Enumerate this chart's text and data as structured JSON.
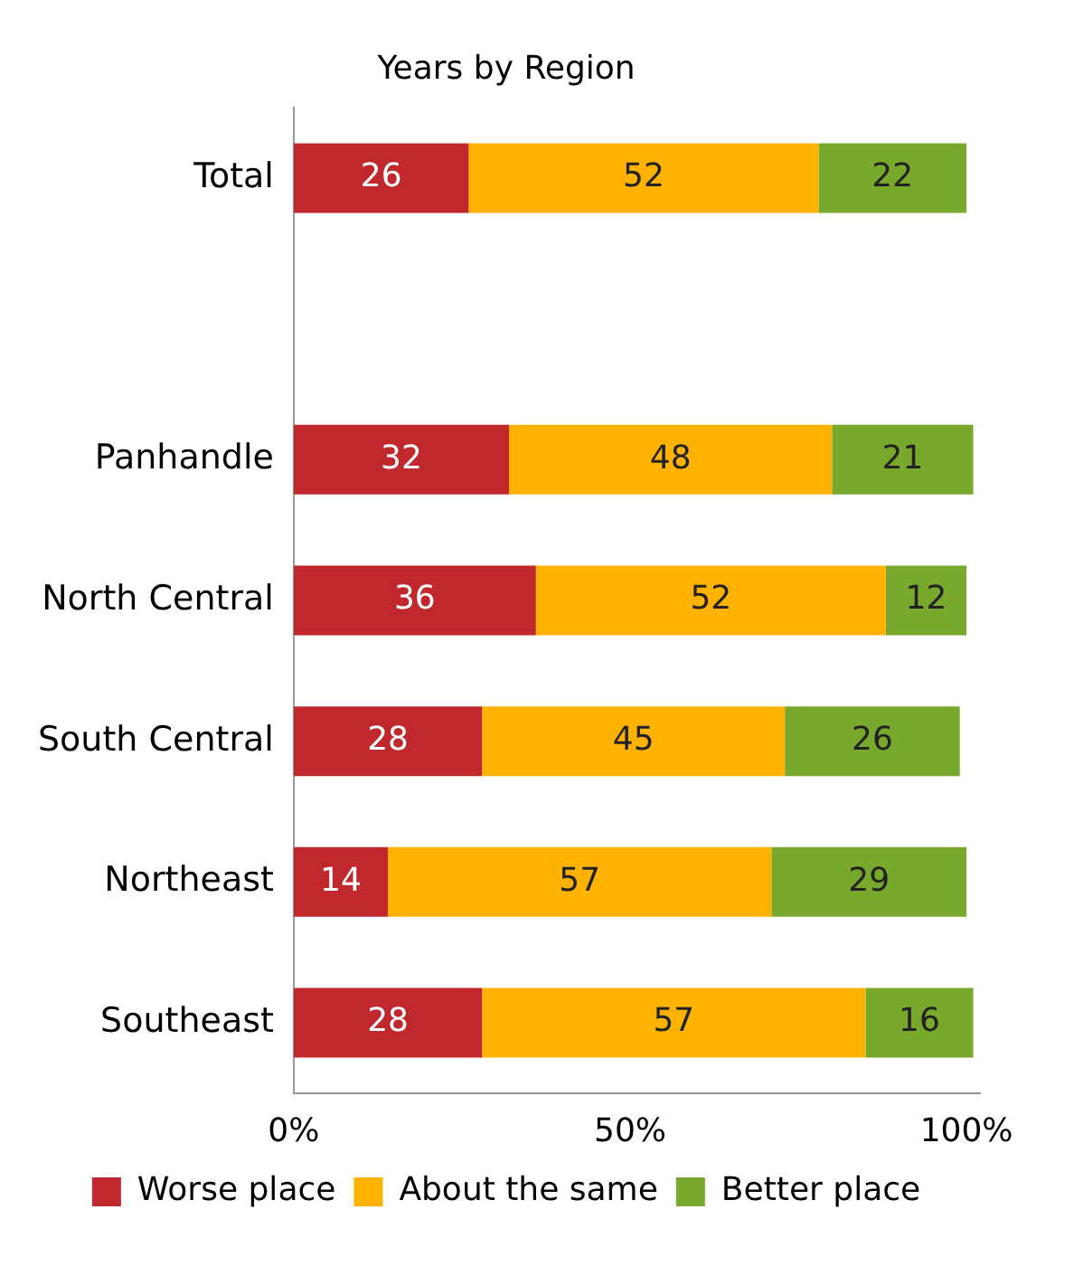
{
  "chart_data": {
    "type": "bar",
    "orientation": "horizontal",
    "stacked": true,
    "title": "Years by Region",
    "categories": [
      "Total",
      null,
      "Panhandle",
      "North Central",
      "South Central",
      "Northeast",
      "Southeast"
    ],
    "series": [
      {
        "name": "Worse place",
        "color": "#c0282e",
        "values": [
          26,
          null,
          32,
          36,
          28,
          14,
          28
        ]
      },
      {
        "name": "About the same",
        "color": "#ffb300",
        "values": [
          52,
          null,
          48,
          52,
          45,
          57,
          57
        ]
      },
      {
        "name": "Better place",
        "color": "#78a82c",
        "values": [
          22,
          null,
          21,
          12,
          26,
          29,
          16
        ]
      }
    ],
    "xlim": [
      0,
      102
    ],
    "xticks": [
      {
        "value": 0,
        "label": "0%"
      },
      {
        "value": 50,
        "label": "50%"
      },
      {
        "value": 100,
        "label": "100%"
      }
    ],
    "data_labels": true,
    "grid": false,
    "legend": "bottom"
  }
}
